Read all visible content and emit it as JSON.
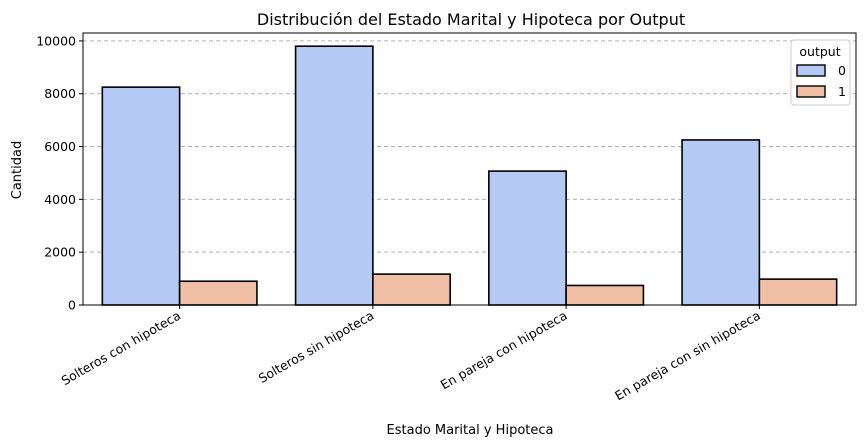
{
  "chart_data": {
    "type": "bar",
    "title": "Distribución del Estado Marital y Hipoteca por Output",
    "xlabel": "Estado Marital y Hipoteca",
    "ylabel": "Cantidad",
    "categories": [
      "Solteros con hipoteca",
      "Solteros sin hipoteca",
      "En pareja con hipoteca",
      "En pareja con sin hipoteca"
    ],
    "series": [
      {
        "name": "0",
        "values": [
          8250,
          9800,
          5070,
          6250
        ],
        "color": "#b5c9f5"
      },
      {
        "name": "1",
        "values": [
          900,
          1170,
          740,
          980
        ],
        "color": "#f0bda5"
      }
    ],
    "ylim": [
      0,
      10300
    ],
    "yticks": [
      0,
      2000,
      4000,
      6000,
      8000,
      10000
    ],
    "grid": "y-dashed",
    "legend": {
      "title": "output",
      "placement": "top-right"
    }
  }
}
